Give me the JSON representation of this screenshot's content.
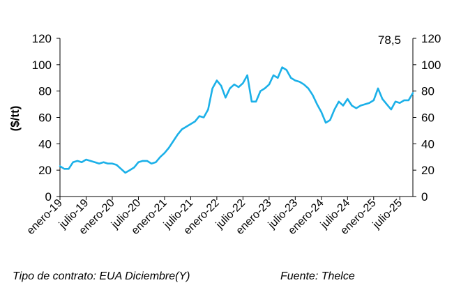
{
  "chart_data": {
    "type": "line",
    "ylabel": "($/tt)",
    "ylim": [
      0,
      120
    ],
    "y_ticks": [
      "0",
      "20",
      "40",
      "60",
      "80",
      "100",
      "120"
    ],
    "y_ticks_right": [
      "0",
      "20",
      "40",
      "60",
      "80",
      "100",
      "120"
    ],
    "x_tick_labels": [
      "enero-19",
      "julio-19",
      "enero-20",
      "julio-20",
      "enero-21",
      "julio-21",
      "enero-22",
      "julio-22",
      "enero-23",
      "julio-23",
      "enero-24",
      "julio-24",
      "enero-25",
      "julio-25"
    ],
    "x_range": [
      "2019-01",
      "2025-10"
    ],
    "last_value_label": "78,5",
    "grid": false,
    "line_color": "#1BB0E8",
    "series": [
      {
        "x": [
          "2019-01",
          "2019-02",
          "2019-03",
          "2019-04",
          "2019-05",
          "2019-06",
          "2019-07",
          "2019-08",
          "2019-09",
          "2019-10",
          "2019-11",
          "2019-12",
          "2020-01",
          "2020-02",
          "2020-03",
          "2020-04",
          "2020-05",
          "2020-06",
          "2020-07",
          "2020-08",
          "2020-09",
          "2020-10",
          "2020-11",
          "2020-12",
          "2021-01",
          "2021-02",
          "2021-03",
          "2021-04",
          "2021-05",
          "2021-06",
          "2021-07",
          "2021-08",
          "2021-09",
          "2021-10",
          "2021-11",
          "2021-12",
          "2022-01",
          "2022-02",
          "2022-03",
          "2022-04",
          "2022-05",
          "2022-06",
          "2022-07",
          "2022-08",
          "2022-09",
          "2022-10",
          "2022-11",
          "2022-12",
          "2023-01",
          "2023-02",
          "2023-03",
          "2023-04",
          "2023-05",
          "2023-06",
          "2023-07",
          "2023-08",
          "2023-09",
          "2023-10",
          "2023-11",
          "2023-12",
          "2024-01",
          "2024-02",
          "2024-03",
          "2024-04",
          "2024-05",
          "2024-06",
          "2024-07",
          "2024-08",
          "2024-09",
          "2024-10",
          "2024-11",
          "2024-12",
          "2025-01",
          "2025-02",
          "2025-03",
          "2025-04",
          "2025-05",
          "2025-06",
          "2025-07",
          "2025-08",
          "2025-09",
          "2025-10"
        ],
        "values": [
          23,
          21,
          21,
          26,
          27,
          26,
          28,
          27,
          26,
          25,
          26,
          25,
          25,
          24,
          21,
          18,
          20,
          22,
          26,
          27,
          27,
          25,
          26,
          30,
          33,
          37,
          42,
          47,
          51,
          53,
          55,
          57,
          61,
          60,
          66,
          82,
          88,
          84,
          75,
          82,
          85,
          83,
          86,
          92,
          72,
          72,
          80,
          82,
          85,
          92,
          90,
          98,
          96,
          90,
          88,
          87,
          85,
          82,
          77,
          70,
          64,
          56,
          58,
          66,
          72,
          69,
          74,
          69,
          67,
          69,
          70,
          71,
          73,
          82,
          74,
          70,
          66,
          72,
          71,
          73,
          73,
          78.5
        ]
      }
    ]
  },
  "footer": {
    "left": "Tipo de contrato: EUA Diciembre(Y)",
    "right": "Fuente: Thelce"
  }
}
